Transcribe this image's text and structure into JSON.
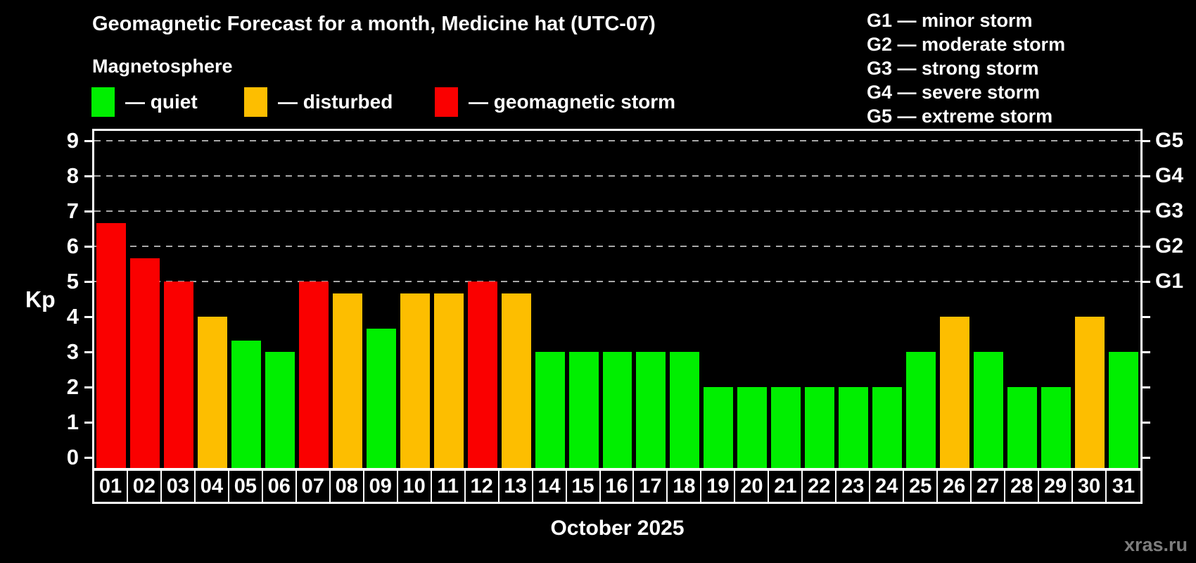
{
  "title": "Geomagnetic Forecast for a month, Medicine hat (UTC-07)",
  "subtitle": "Magnetosphere",
  "legend": {
    "items": [
      {
        "key": "quiet",
        "label": "— quiet",
        "color": "#00ef00"
      },
      {
        "key": "disturbed",
        "label": "— disturbed",
        "color": "#fdbe00"
      },
      {
        "key": "storm",
        "label": "— geomagnetic storm",
        "color": "#fa0000"
      }
    ]
  },
  "g_legend": {
    "items": [
      "G1 — minor storm",
      "G2 — moderate storm",
      "G3 — strong storm",
      "G4 — severe storm",
      "G5 — extreme storm"
    ]
  },
  "axis": {
    "y_label": "Kp",
    "x_title": "October 2025"
  },
  "watermark": "xras.ru",
  "colors": {
    "background": "#000000",
    "frame": "#ffffff",
    "gridline": "#a8a8a8",
    "quiet": "#00ef00",
    "disturbed": "#fdbe00",
    "storm": "#fa0000",
    "watermark": "#7d7d7d"
  },
  "chart_data": {
    "type": "bar",
    "title": "Geomagnetic Forecast for a month, Medicine hat (UTC-07)",
    "xlabel": "October 2025",
    "ylabel": "Kp",
    "ylim": [
      -0.4,
      9.4
    ],
    "yticks": [
      0,
      1,
      2,
      3,
      4,
      5,
      6,
      7,
      8,
      9
    ],
    "gridlines_at": [
      5,
      6,
      7,
      8,
      9
    ],
    "grid_style": "horizontal dashed, only at Kp 5-9 (G-storm levels)",
    "legend_position": "top-left",
    "right_axis_labels": [
      {
        "value": 5,
        "label": "G1"
      },
      {
        "value": 6,
        "label": "G2"
      },
      {
        "value": 7,
        "label": "G3"
      },
      {
        "value": 8,
        "label": "G4"
      },
      {
        "value": 9,
        "label": "G5"
      }
    ],
    "categories": [
      "01",
      "02",
      "03",
      "04",
      "05",
      "06",
      "07",
      "08",
      "09",
      "10",
      "11",
      "12",
      "13",
      "14",
      "15",
      "16",
      "17",
      "18",
      "19",
      "20",
      "21",
      "22",
      "23",
      "24",
      "25",
      "26",
      "27",
      "28",
      "29",
      "30",
      "31"
    ],
    "values": [
      6.67,
      5.67,
      5,
      4,
      3.33,
      3,
      5,
      4.67,
      3.67,
      4.67,
      4.67,
      5,
      4.67,
      3,
      3,
      3,
      3,
      3,
      2,
      2,
      2,
      2,
      2,
      2,
      3,
      4,
      3,
      2,
      2,
      4,
      3
    ],
    "statuses": [
      "storm",
      "storm",
      "storm",
      "disturbed",
      "quiet",
      "quiet",
      "storm",
      "disturbed",
      "quiet",
      "disturbed",
      "disturbed",
      "storm",
      "disturbed",
      "quiet",
      "quiet",
      "quiet",
      "quiet",
      "quiet",
      "quiet",
      "quiet",
      "quiet",
      "quiet",
      "quiet",
      "quiet",
      "quiet",
      "disturbed",
      "quiet",
      "quiet",
      "quiet",
      "disturbed",
      "quiet"
    ]
  }
}
